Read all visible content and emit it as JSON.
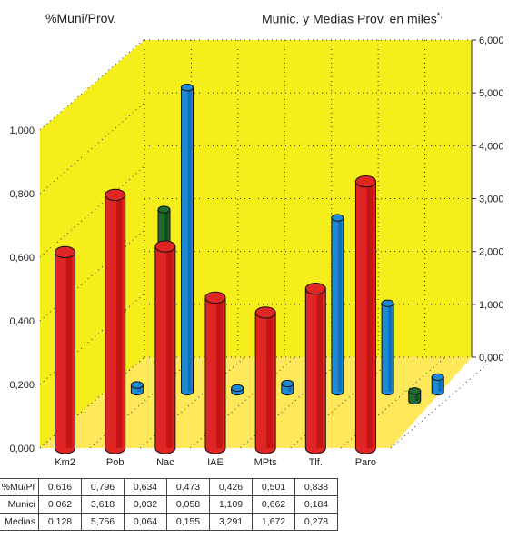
{
  "chart_data": {
    "type": "bar",
    "title_left": "%Muni/Prov.",
    "title_right": "Munic. y Medias Prov. en miles",
    "title_right_mark": "*.",
    "categories": [
      "Km2",
      "Pob",
      "Nac",
      "IAE",
      "MPts",
      "Tlf.",
      "Paro"
    ],
    "left_axis": {
      "ticks": [
        "0,000",
        "0,200",
        "0,400",
        "0,600",
        "0,800",
        "1,000"
      ],
      "ylim": [
        0,
        1.0
      ]
    },
    "right_axis": {
      "ticks": [
        "0,000",
        "1,000",
        "2,000",
        "3,000",
        "4,000",
        "5,000",
        "6,000"
      ],
      "ylim": [
        0,
        6.0
      ]
    },
    "series": [
      {
        "name": "%Mu/Pr",
        "axis": "left",
        "color": "#e02525",
        "values": [
          0.616,
          0.796,
          0.634,
          0.473,
          0.426,
          0.501,
          0.838
        ],
        "labels": [
          "0,616",
          "0,796",
          "0,634",
          "0,473",
          "0,426",
          "0,501",
          "0,838"
        ]
      },
      {
        "name": "Munici",
        "axis": "right",
        "color": "#1f6b30",
        "values": [
          0.062,
          3.618,
          0.032,
          0.058,
          1.109,
          0.662,
          0.184
        ],
        "labels": [
          "0,062",
          "3,618",
          "0,032",
          "0,058",
          "1,109",
          "0,662",
          "0,184"
        ]
      },
      {
        "name": "Medias",
        "axis": "right",
        "color": "#1e8ad6",
        "values": [
          0.128,
          5.756,
          0.064,
          0.155,
          3.291,
          1.672,
          0.278
        ],
        "labels": [
          "0,128",
          "5,756",
          "0,064",
          "0,155",
          "3,291",
          "1,672",
          "0,278"
        ]
      }
    ],
    "grid": true,
    "background": "#f5ee1a",
    "floor_color": "#ffe95a"
  }
}
